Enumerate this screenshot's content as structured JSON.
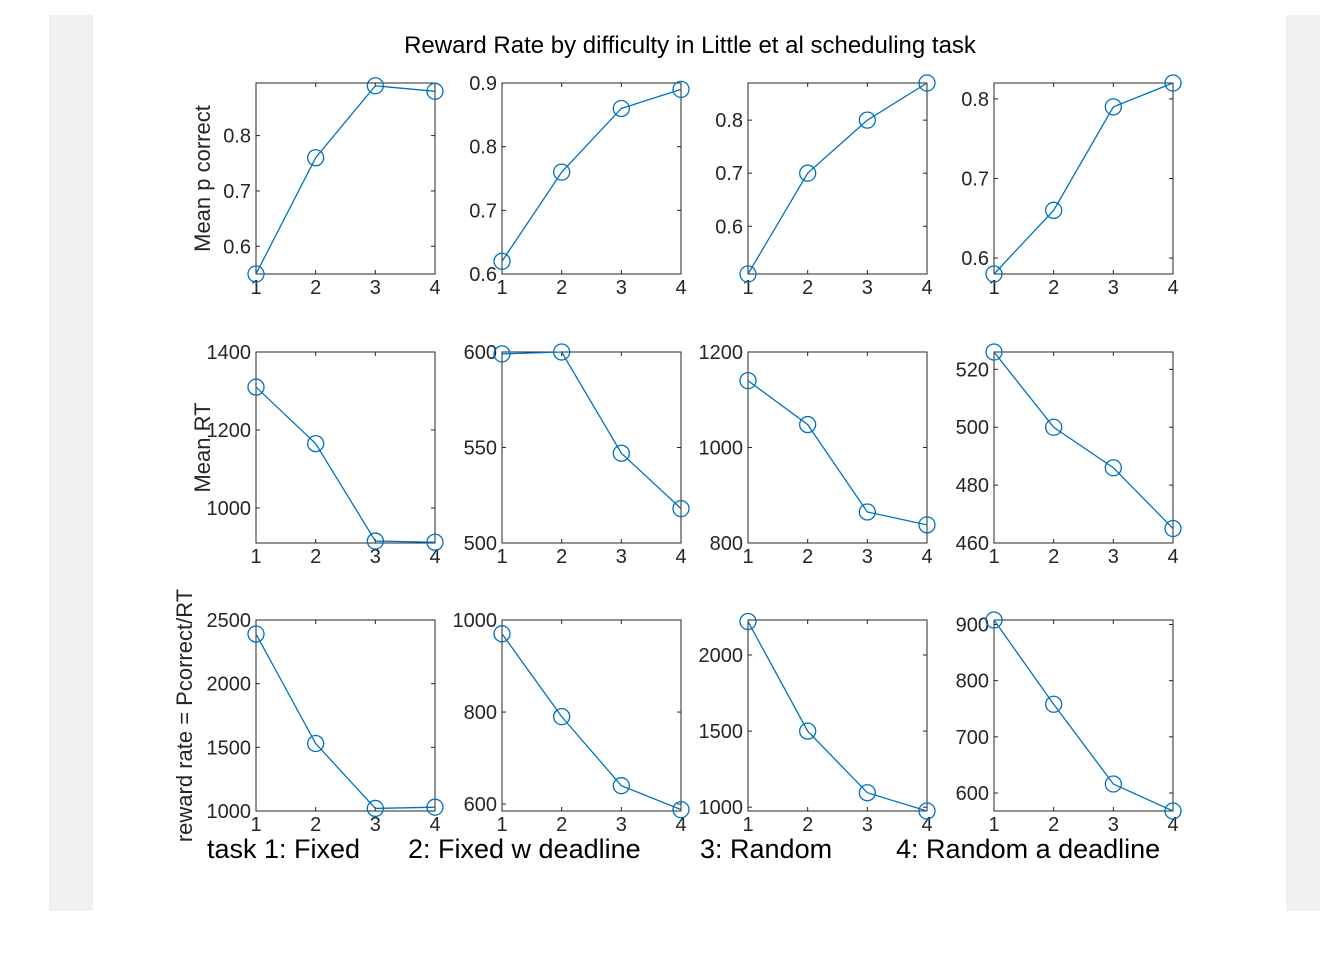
{
  "figure": {
    "title": "Reward Rate by difficulty in Little et al scheduling task",
    "bottom_labels": [
      "task 1: Fixed",
      "2: Fixed w deadline",
      "3: Random",
      "4: Random a deadline"
    ],
    "colors": {
      "series": "#0072BD",
      "axes": "#262626",
      "frame": "#f0f0f0"
    },
    "marker": "circle-open"
  },
  "chart_data": [
    {
      "type": "line",
      "row_label": "Mean p correct",
      "x": [
        1,
        2,
        3,
        4
      ],
      "y": [
        0.55,
        0.76,
        0.89,
        0.88
      ],
      "xlim": [
        1,
        4
      ],
      "ylim": [
        0.55,
        0.895
      ],
      "xticks": [
        1,
        2,
        3,
        4
      ],
      "yticks": [
        0.6,
        0.7,
        0.8
      ],
      "ytick_labels": [
        "0.6",
        "0.7",
        "0.8"
      ]
    },
    {
      "type": "line",
      "row_label": "",
      "x": [
        1,
        2,
        3,
        4
      ],
      "y": [
        0.62,
        0.76,
        0.86,
        0.89
      ],
      "xlim": [
        1,
        4
      ],
      "ylim": [
        0.6,
        0.9
      ],
      "xticks": [
        1,
        2,
        3,
        4
      ],
      "yticks": [
        0.6,
        0.7,
        0.8,
        0.9
      ],
      "ytick_labels": [
        "0.6",
        "0.7",
        "0.8",
        "0.9"
      ]
    },
    {
      "type": "line",
      "row_label": "",
      "x": [
        1,
        2,
        3,
        4
      ],
      "y": [
        0.51,
        0.7,
        0.8,
        0.87
      ],
      "xlim": [
        1,
        4
      ],
      "ylim": [
        0.51,
        0.87
      ],
      "xticks": [
        1,
        2,
        3,
        4
      ],
      "yticks": [
        0.6,
        0.7,
        0.8
      ],
      "ytick_labels": [
        "0.6",
        "0.7",
        "0.8"
      ]
    },
    {
      "type": "line",
      "row_label": "",
      "x": [
        1,
        2,
        3,
        4
      ],
      "y": [
        0.58,
        0.66,
        0.79,
        0.82
      ],
      "xlim": [
        1,
        4
      ],
      "ylim": [
        0.58,
        0.82
      ],
      "xticks": [
        1,
        2,
        3,
        4
      ],
      "yticks": [
        0.6,
        0.7,
        0.8
      ],
      "ytick_labels": [
        "0.6",
        "0.7",
        "0.8"
      ]
    },
    {
      "type": "line",
      "row_label": "Mean RT",
      "x": [
        1,
        2,
        3,
        4
      ],
      "y": [
        1310,
        1165,
        915,
        912
      ],
      "xlim": [
        1,
        4
      ],
      "ylim": [
        910,
        1400
      ],
      "xticks": [
        1,
        2,
        3,
        4
      ],
      "yticks": [
        1000,
        1200,
        1400
      ],
      "ytick_labels": [
        "1000",
        "1200",
        "1400"
      ]
    },
    {
      "type": "line",
      "row_label": "",
      "x": [
        1,
        2,
        3,
        4
      ],
      "y": [
        599,
        600,
        547,
        518
      ],
      "xlim": [
        1,
        4
      ],
      "ylim": [
        500,
        600
      ],
      "xticks": [
        1,
        2,
        3,
        4
      ],
      "yticks": [
        500,
        550,
        600
      ],
      "ytick_labels": [
        "500",
        "550",
        "600"
      ]
    },
    {
      "type": "line",
      "row_label": "",
      "x": [
        1,
        2,
        3,
        4
      ],
      "y": [
        1140,
        1048,
        865,
        838
      ],
      "xlim": [
        1,
        4
      ],
      "ylim": [
        800,
        1200
      ],
      "xticks": [
        1,
        2,
        3,
        4
      ],
      "yticks": [
        800,
        1000,
        1200
      ],
      "ytick_labels": [
        "800",
        "1000",
        "1200"
      ]
    },
    {
      "type": "line",
      "row_label": "",
      "x": [
        1,
        2,
        3,
        4
      ],
      "y": [
        526,
        500,
        486,
        465
      ],
      "xlim": [
        1,
        4
      ],
      "ylim": [
        460,
        526
      ],
      "xticks": [
        1,
        2,
        3,
        4
      ],
      "yticks": [
        460,
        480,
        500,
        520
      ],
      "ytick_labels": [
        "460",
        "480",
        "500",
        "520"
      ]
    },
    {
      "type": "line",
      "row_label": "reward rate = Pcorrect/RT",
      "x": [
        1,
        2,
        3,
        4
      ],
      "y": [
        2390,
        1530,
        1020,
        1030
      ],
      "xlim": [
        1,
        4
      ],
      "ylim": [
        1000,
        2500
      ],
      "xticks": [
        1,
        2,
        3,
        4
      ],
      "yticks": [
        1000,
        1500,
        2000,
        2500
      ],
      "ytick_labels": [
        "1000",
        "1500",
        "2000",
        "2500"
      ]
    },
    {
      "type": "line",
      "row_label": "",
      "x": [
        1,
        2,
        3,
        4
      ],
      "y": [
        970,
        790,
        640,
        588
      ],
      "xlim": [
        1,
        4
      ],
      "ylim": [
        585,
        1000
      ],
      "xticks": [
        1,
        2,
        3,
        4
      ],
      "yticks": [
        600,
        800,
        1000
      ],
      "ytick_labels": [
        "600",
        "800",
        "1000"
      ]
    },
    {
      "type": "line",
      "row_label": "",
      "x": [
        1,
        2,
        3,
        4
      ],
      "y": [
        2220,
        1500,
        1095,
        975
      ],
      "xlim": [
        1,
        4
      ],
      "ylim": [
        975,
        2230
      ],
      "xticks": [
        1,
        2,
        3,
        4
      ],
      "yticks": [
        1000,
        1500,
        2000
      ],
      "ytick_labels": [
        "1000",
        "1500",
        "2000"
      ]
    },
    {
      "type": "line",
      "row_label": "",
      "x": [
        1,
        2,
        3,
        4
      ],
      "y": [
        908,
        758,
        616,
        568
      ],
      "xlim": [
        1,
        4
      ],
      "ylim": [
        568,
        908
      ],
      "xticks": [
        1,
        2,
        3,
        4
      ],
      "yticks": [
        600,
        700,
        800,
        900
      ],
      "ytick_labels": [
        "600",
        "700",
        "800",
        "900"
      ]
    }
  ]
}
